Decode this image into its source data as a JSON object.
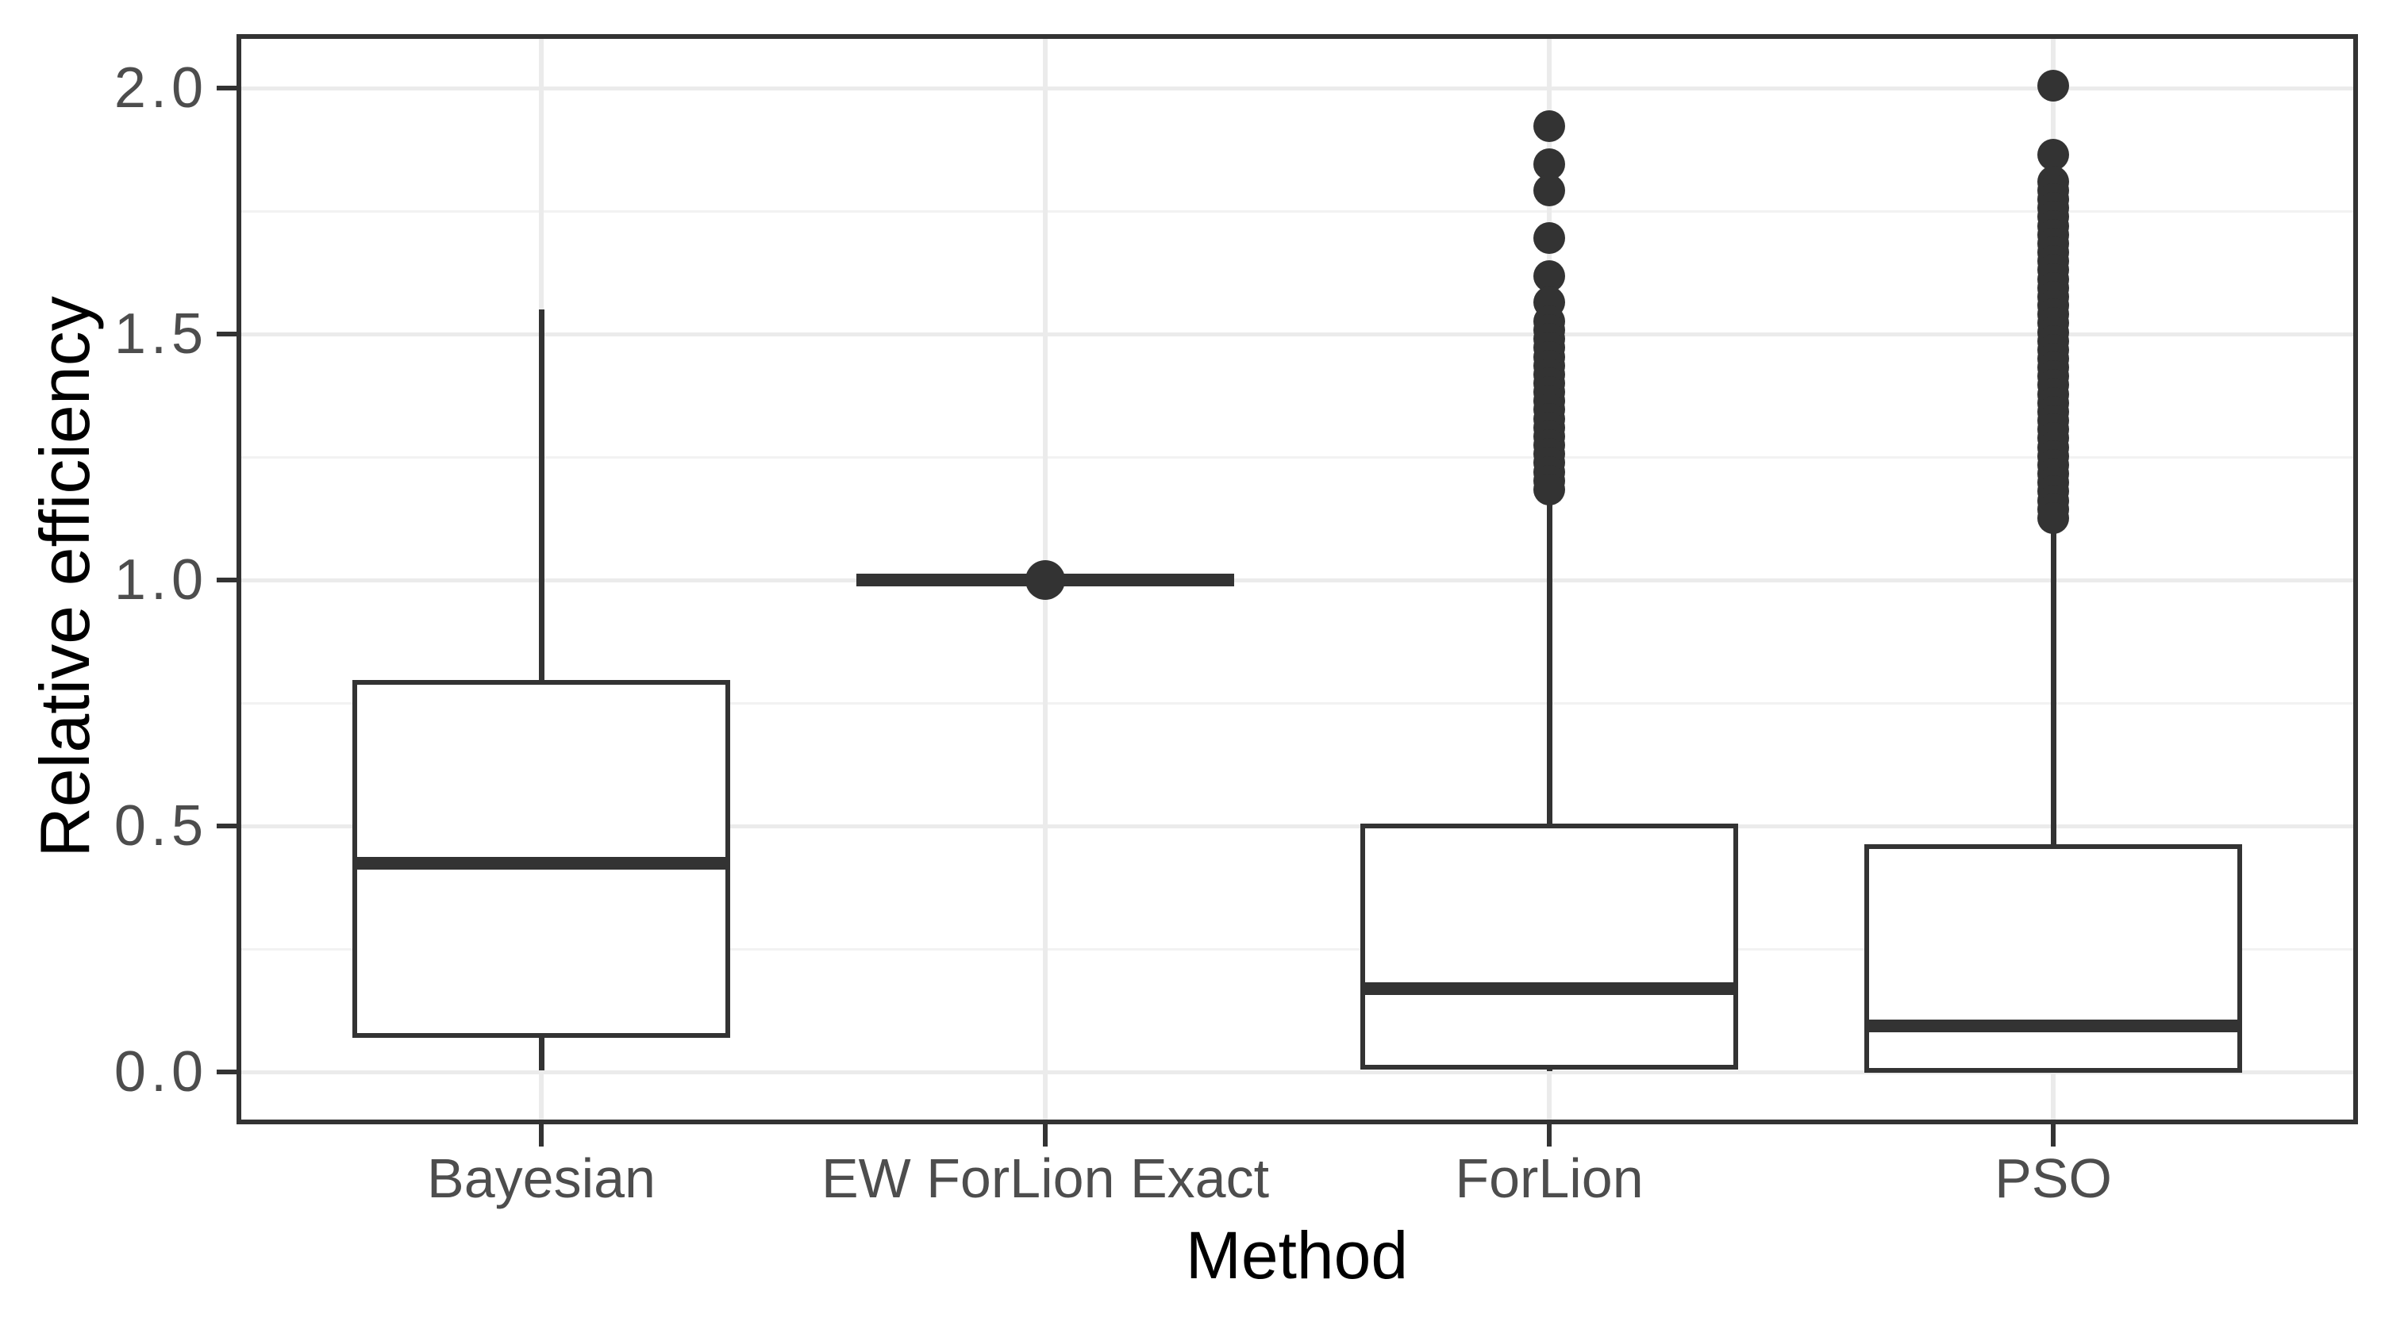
{
  "chart_data": {
    "type": "boxplot",
    "title": "",
    "xlabel": "Method",
    "ylabel": "Relative efficiency",
    "categories": [
      "Bayesian",
      "EW ForLion Exact",
      "ForLion",
      "PSO"
    ],
    "y_axis": {
      "ticks": [
        2.0,
        1.5,
        1.0,
        0.5,
        0.0
      ],
      "tick_labels": [
        "2.0",
        "1.5",
        "1.0",
        "0.5",
        "0.0"
      ],
      "minor_ticks": [
        1.75,
        1.25,
        0.75,
        0.25
      ],
      "range": [
        -0.1,
        2.1
      ],
      "grid": "on",
      "legend": "none"
    },
    "series": [
      {
        "name": "Bayesian",
        "whisker_low": 0.004,
        "q1": 0.079,
        "median": 0.424,
        "q3": 0.787,
        "whisker_high": 1.55,
        "outliers": [],
        "outlier_bands": [],
        "dot_size": 40
      },
      {
        "name": "EW ForLion Exact",
        "whisker_low": 0.995,
        "q1": 0.997,
        "median": 1.0,
        "q3": 1.003,
        "whisker_high": 1.005,
        "outliers": [
          1.0
        ],
        "outlier_bands": [],
        "dot_size": 50
      },
      {
        "name": "ForLion",
        "whisker_low": 0.002,
        "q1": 0.015,
        "median": 0.169,
        "q3": 0.495,
        "whisker_high": 1.163,
        "outliers": [
          1.923,
          1.845,
          1.792,
          1.695,
          1.618,
          1.565
        ],
        "outlier_bands": [
          [
            1.17,
            1.526
          ]
        ],
        "dot_size": 40
      },
      {
        "name": "PSO",
        "whisker_low": 0.002,
        "q1": 0.008,
        "median": 0.094,
        "q3": 0.453,
        "whisker_high": 1.1,
        "outliers": [
          2.005,
          1.865
        ],
        "outlier_bands": [
          [
            1.11,
            1.81
          ]
        ],
        "dot_size": 40
      }
    ],
    "colors": {
      "stroke": "#333333",
      "grid_major": "#EBEBEB",
      "grid_minor": "#F2F2F2",
      "tick_label": "#4D4D4D",
      "axis_title": "#000000",
      "panel_background": "#FFFFFF"
    }
  }
}
